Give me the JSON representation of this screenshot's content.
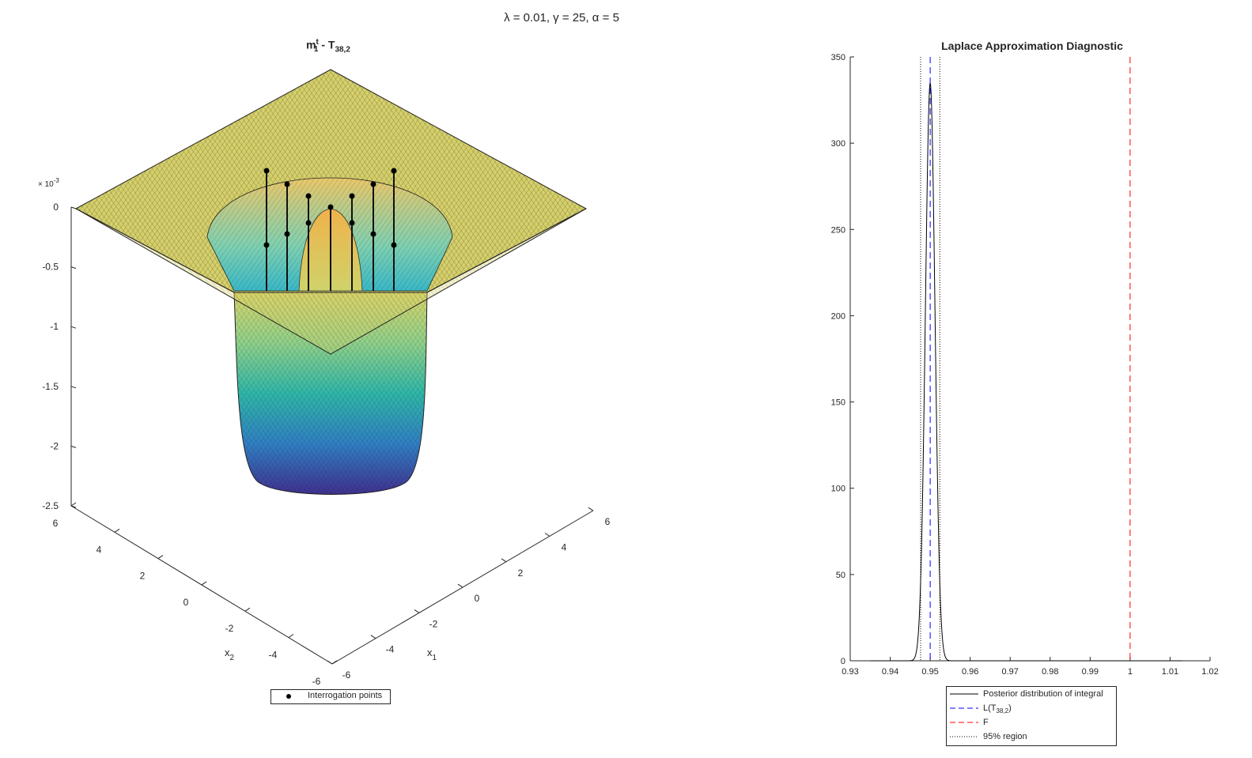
{
  "figure": {
    "suptitle": "λ = 0.01, γ = 25, α = 5"
  },
  "left_panel": {
    "title_main": "m",
    "title_sup": "t",
    "title_sub": "1",
    "title_rest": " - T",
    "title_rest_sub": "38,2",
    "z_exponent_prefix": "× 10",
    "z_exponent": "-3",
    "z_ticks": [
      "0",
      "-0.5",
      "-1",
      "-1.5",
      "-2",
      "-2.5"
    ],
    "x2_ticks": [
      "6",
      "4",
      "2",
      "0",
      "-2",
      "-4",
      "-6"
    ],
    "x1_ticks": [
      "-6",
      "-4",
      "-2",
      "0",
      "2",
      "4",
      "6"
    ],
    "x2_label": "x",
    "x2_label_sub": "2",
    "x1_label": "x",
    "x1_label_sub": "1",
    "legend_label": "Interrogation points",
    "colors": {
      "surface_edge": "#1a1a1a",
      "plateau": "#d9d46a",
      "deep": "#3b2a8a"
    }
  },
  "chart_data": {
    "type": "line",
    "title": "Laplace Approximation Diagnostic",
    "xlim": [
      0.93,
      1.02
    ],
    "ylim": [
      0,
      350
    ],
    "x_ticks": [
      "0.93",
      "0.94",
      "0.95",
      "0.96",
      "0.97",
      "0.98",
      "0.99",
      "1",
      "1.01",
      "1.02"
    ],
    "y_ticks": [
      "0",
      "50",
      "100",
      "150",
      "200",
      "250",
      "300",
      "350"
    ],
    "posterior": {
      "mean": 0.95,
      "sd": 0.0012,
      "peak": 335,
      "x_range": [
        0.935,
        1.013
      ],
      "color": "#000000"
    },
    "L_T": {
      "x": 0.95,
      "color": "#0000ff"
    },
    "F": {
      "x": 1.0,
      "color": "#ff0000"
    },
    "region95": {
      "lo": 0.9476,
      "hi": 0.9524,
      "color": "#000000"
    },
    "legend": [
      {
        "label": "Posterior distribution of integral",
        "style": "solid",
        "color": "#000000"
      },
      {
        "label": "L(T",
        "sub": "38,2",
        "tail": ")",
        "style": "dashed",
        "color": "#0000ff"
      },
      {
        "label": "F",
        "style": "dashed",
        "color": "#ff0000"
      },
      {
        "label": "95% region",
        "style": "dotted",
        "color": "#000000"
      }
    ]
  }
}
